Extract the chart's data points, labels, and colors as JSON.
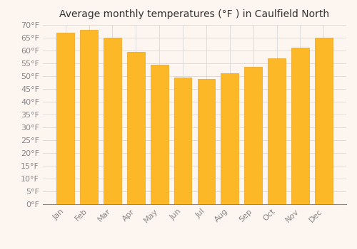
{
  "title": "Average monthly temperatures (°F ) in Caulfield North",
  "months": [
    "Jan",
    "Feb",
    "Mar",
    "Apr",
    "May",
    "Jun",
    "Jul",
    "Aug",
    "Sep",
    "Oct",
    "Nov",
    "Dec"
  ],
  "values": [
    67,
    68,
    65,
    59.5,
    54.5,
    49.5,
    49,
    51,
    53.5,
    57,
    61,
    65
  ],
  "bar_color": "#FDB827",
  "bar_edge_color": "#E8A020",
  "ylim": [
    0,
    70
  ],
  "yticks": [
    0,
    5,
    10,
    15,
    20,
    25,
    30,
    35,
    40,
    45,
    50,
    55,
    60,
    65,
    70
  ],
  "background_color": "#fdf5f0",
  "grid_color": "#dddddd",
  "title_fontsize": 10,
  "tick_fontsize": 8,
  "tick_color": "#888888",
  "title_color": "#333333"
}
